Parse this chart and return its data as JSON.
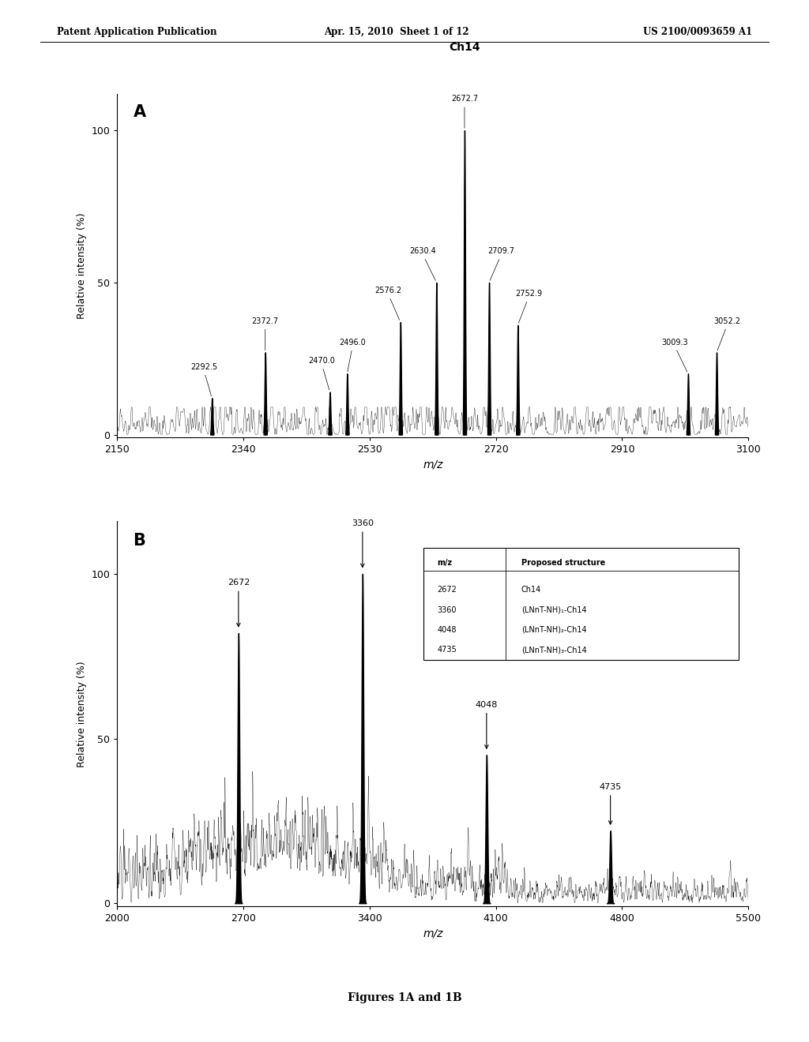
{
  "header_left": "Patent Application Publication",
  "header_center": "Apr. 15, 2010  Sheet 1 of 12",
  "header_right": "US 2100/0093659 A1",
  "footer_text": "Figures 1A and 1B",
  "panel_A": {
    "label": "A",
    "title": "Ch14",
    "xlabel": "m/z",
    "ylabel": "Relative intensity (%)",
    "xmin": 2150,
    "xmax": 3100,
    "xticks": [
      2150,
      2340,
      2530,
      2720,
      2910,
      3100
    ],
    "yticks": [
      0,
      50,
      100
    ],
    "peaks": [
      {
        "mz": 2292.5,
        "intensity": 12,
        "label": "2292.5"
      },
      {
        "mz": 2372.7,
        "intensity": 27,
        "label": "2372.7"
      },
      {
        "mz": 2470.0,
        "intensity": 14,
        "label": "2470.0"
      },
      {
        "mz": 2496.0,
        "intensity": 20,
        "label": "2496.0"
      },
      {
        "mz": 2576.2,
        "intensity": 37,
        "label": "2576.2"
      },
      {
        "mz": 2630.4,
        "intensity": 50,
        "label": "2630.4"
      },
      {
        "mz": 2672.7,
        "intensity": 100,
        "label": "2672.7"
      },
      {
        "mz": 2709.7,
        "intensity": 50,
        "label": "2709.7"
      },
      {
        "mz": 2752.9,
        "intensity": 36,
        "label": "2752.9"
      },
      {
        "mz": 3009.3,
        "intensity": 20,
        "label": "3009.3"
      },
      {
        "mz": 3052.2,
        "intensity": 27,
        "label": "3052.2"
      }
    ]
  },
  "panel_B": {
    "label": "B",
    "xlabel": "m/z",
    "ylabel": "Relative intensity (%)",
    "xmin": 2000,
    "xmax": 5500,
    "xticks": [
      2000,
      2700,
      3400,
      4100,
      4800,
      5500
    ],
    "yticks": [
      0,
      50,
      100
    ],
    "annotated_peaks": [
      {
        "mz": 2672,
        "intensity": 82,
        "label": "2672"
      },
      {
        "mz": 3360,
        "intensity": 100,
        "label": "3360"
      },
      {
        "mz": 4048,
        "intensity": 45,
        "label": "4048"
      },
      {
        "mz": 4735,
        "intensity": 22,
        "label": "4735"
      }
    ],
    "legend_headers": [
      "m/z",
      "Proposed structure"
    ],
    "legend_rows": [
      [
        "2672",
        "Ch14"
      ],
      [
        "3360",
        "(LNnT-NH)₁-Ch14"
      ],
      [
        "4048",
        "(LNnT-NH)₂-Ch14"
      ],
      [
        "4735",
        "(LNnT-NH)₃-Ch14"
      ]
    ]
  }
}
